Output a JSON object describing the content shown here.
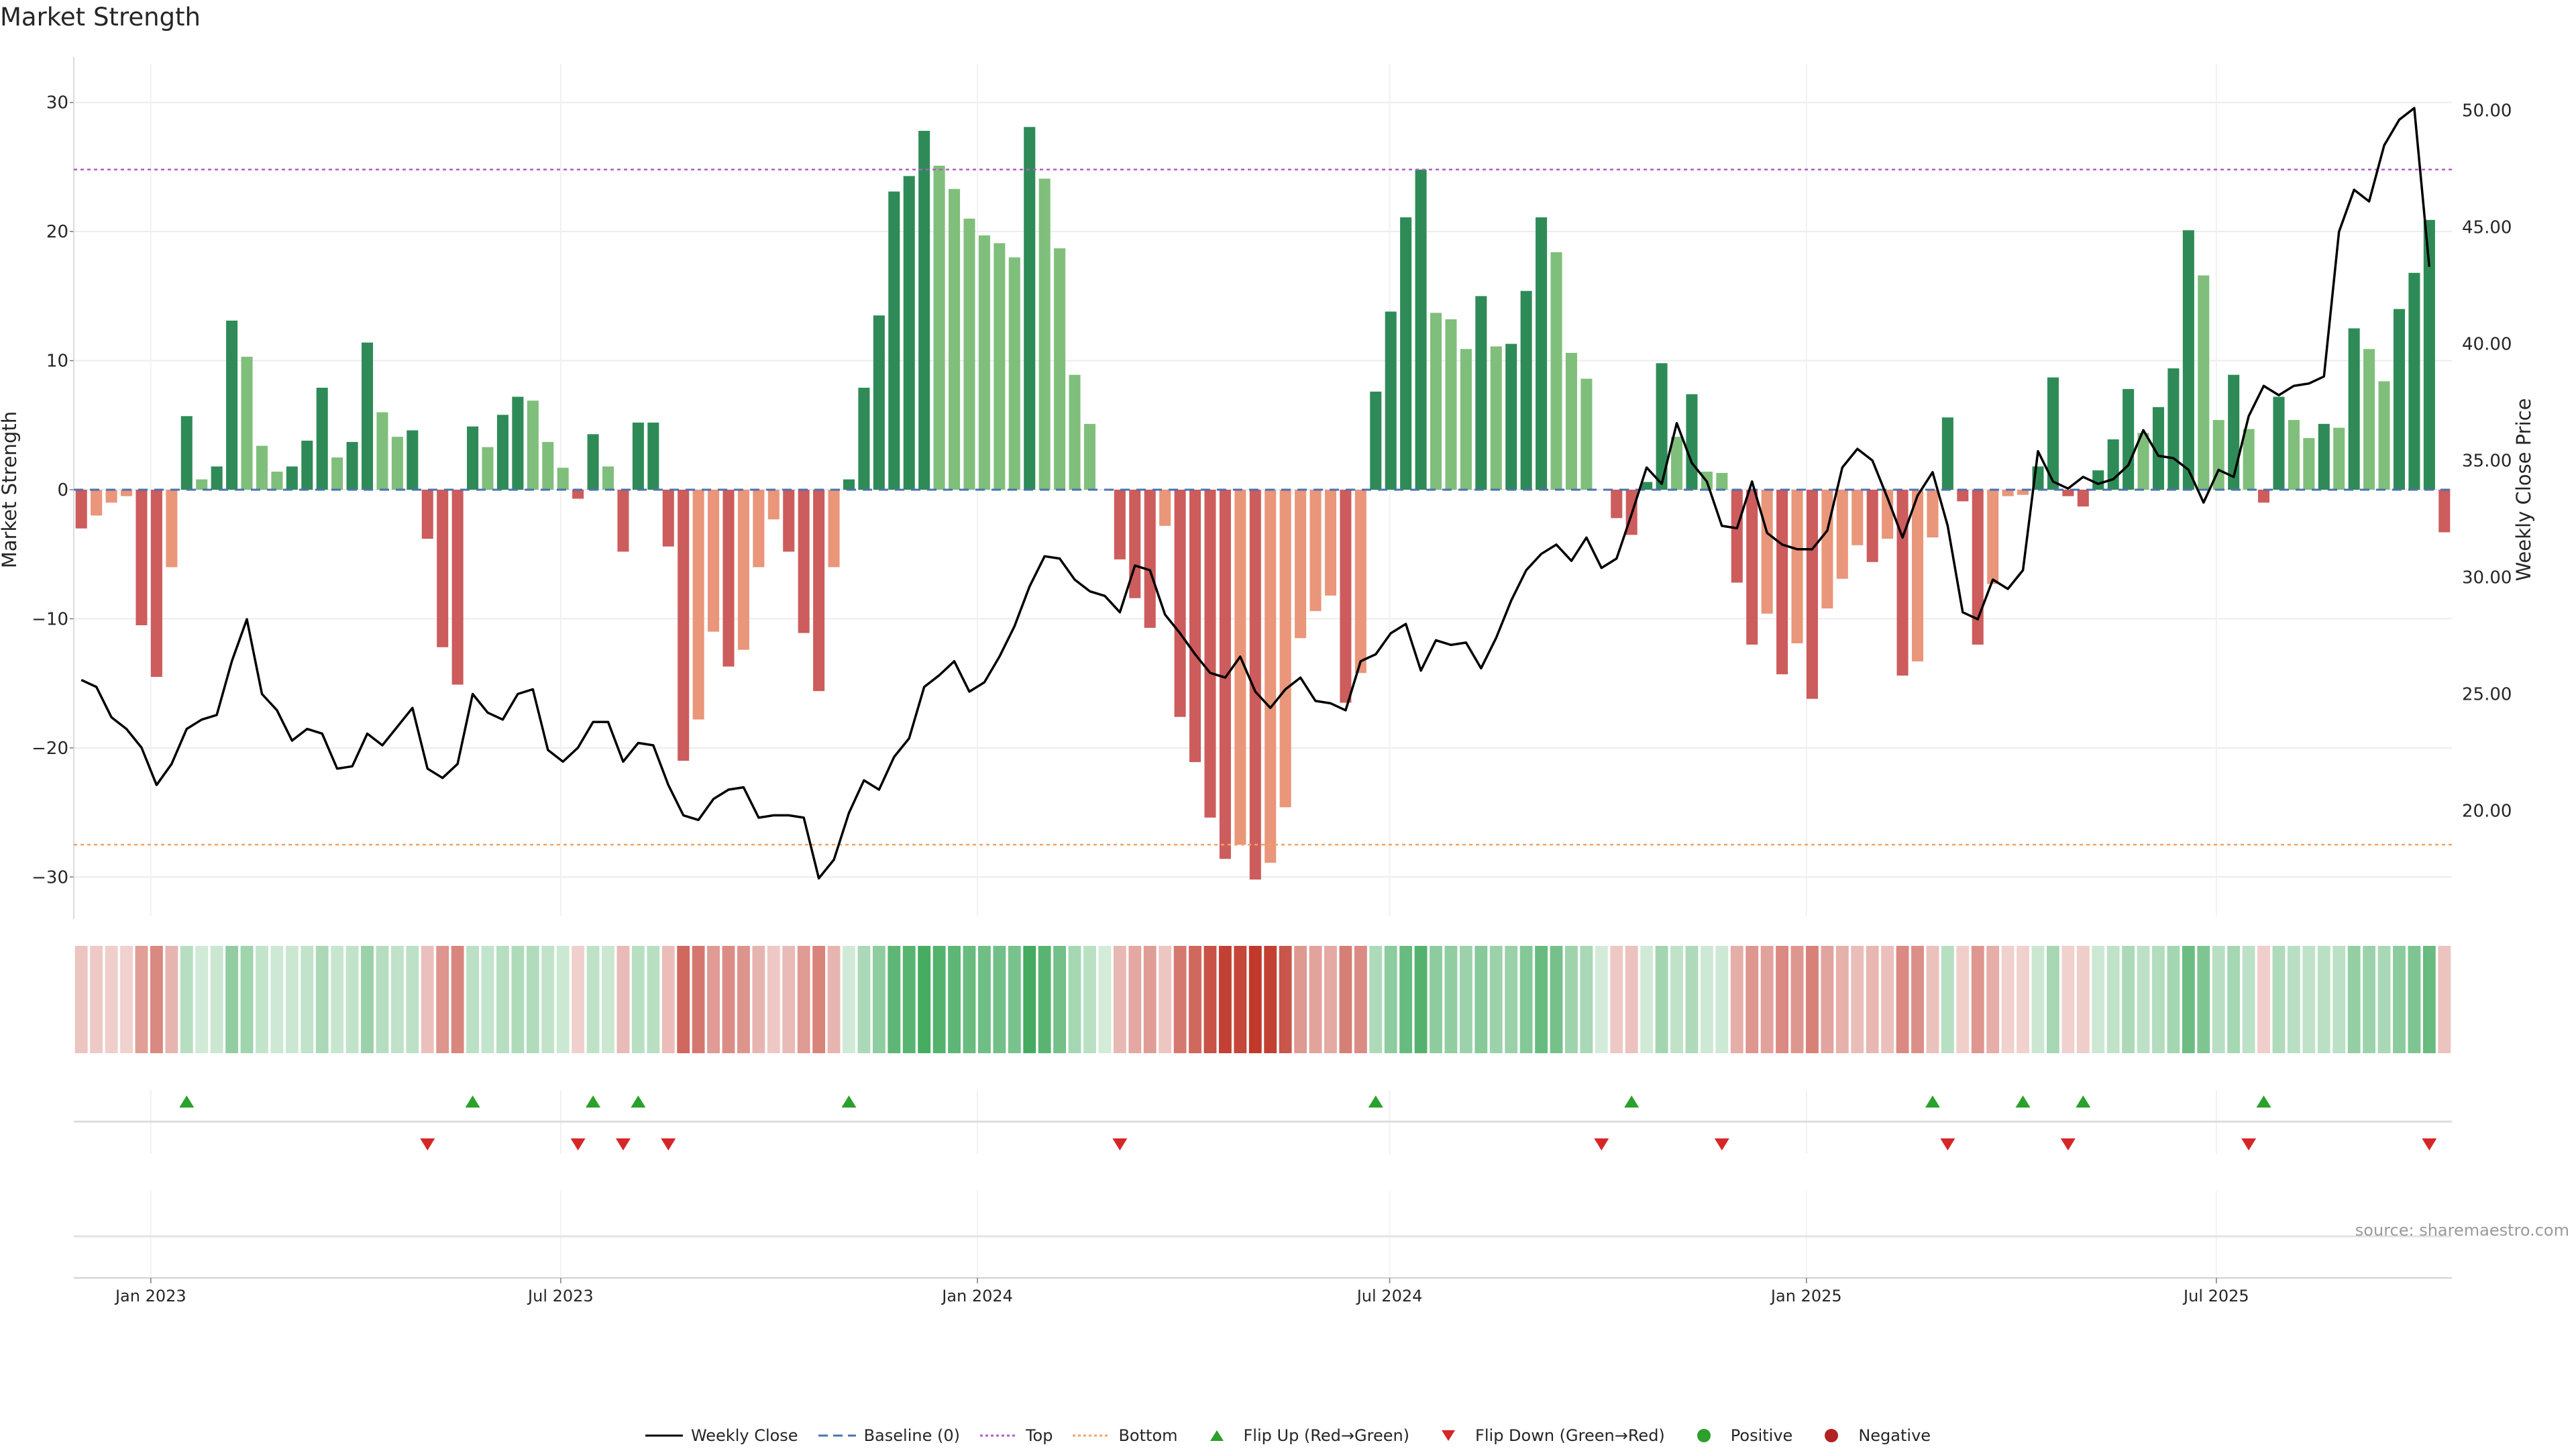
{
  "chart_data": {
    "title": "Market Strength",
    "type": "bar",
    "ylabel": "Market Strength",
    "y2label": "Weekly Close Price",
    "ylim": [
      -33,
      33
    ],
    "y2lim": [
      15.5,
      52
    ],
    "yticks": [
      30,
      20,
      10,
      0,
      -10,
      -20,
      -30
    ],
    "ytick_labels": [
      "30",
      "20",
      "10",
      "0",
      "−10",
      "−20",
      "−30"
    ],
    "y2ticks": [
      50,
      45,
      40,
      35,
      30,
      25,
      20
    ],
    "y2tick_labels": [
      "50.00",
      "45.00",
      "40.00",
      "35.00",
      "30.00",
      "25.00",
      "20.00"
    ],
    "xlim": [
      "2022-11-28",
      "2025-10-13"
    ],
    "xticks": [
      "2023-01-01",
      "2023-07-01",
      "2024-01-01",
      "2024-07-01",
      "2025-01-01",
      "2025-07-01"
    ],
    "xtick_labels": [
      "Jan 2023",
      "Jul 2023",
      "Jan 2024",
      "Jul 2024",
      "Jan 2025",
      "Jul 2025"
    ],
    "start_date": "2022-11-28",
    "top_line": 24.8,
    "bottom_line": -27.5,
    "strength": [
      -3.0,
      -2.0,
      -1.0,
      -0.5,
      -10.5,
      -14.5,
      -6.0,
      5.7,
      0.8,
      1.8,
      13.1,
      10.3,
      3.4,
      1.4,
      1.8,
      3.8,
      7.9,
      2.5,
      3.7,
      11.4,
      6.0,
      4.1,
      4.6,
      -3.8,
      -12.2,
      -15.1,
      4.9,
      3.3,
      5.8,
      7.2,
      6.9,
      3.7,
      1.7,
      -0.7,
      4.3,
      1.8,
      -4.8,
      5.2,
      5.2,
      -4.4,
      -21.0,
      -17.8,
      -11.0,
      -13.7,
      -12.4,
      -6.0,
      -2.3,
      -4.8,
      -11.1,
      -15.6,
      -6.0,
      0.8,
      7.9,
      13.5,
      23.1,
      24.3,
      27.8,
      25.1,
      23.3,
      21.0,
      19.7,
      19.1,
      18.0,
      28.1,
      24.1,
      18.7,
      8.9,
      5.1,
      0,
      -5.4,
      -8.4,
      -10.7,
      -2.8,
      -17.6,
      -21.1,
      -25.4,
      -28.6,
      -27.5,
      -30.2,
      -28.9,
      -24.6,
      -11.5,
      -9.4,
      -8.2,
      -16.5,
      -14.2,
      7.6,
      13.8,
      21.1,
      24.8,
      13.7,
      13.2,
      10.9,
      15.0,
      11.1,
      11.3,
      15.4,
      21.1,
      18.4,
      10.6,
      8.6,
      0,
      -2.2,
      -3.5,
      0.6,
      9.8,
      4.1,
      7.4,
      1.4,
      1.3,
      -7.2,
      -12.0,
      -9.6,
      -14.3,
      -11.9,
      -16.2,
      -9.2,
      -6.9,
      -4.3,
      -5.6,
      -3.8,
      -14.4,
      -13.3,
      -3.7,
      5.6,
      -0.9,
      -12.0,
      -7.3,
      -0.5,
      -0.4,
      1.8,
      8.7,
      -0.5,
      -1.3,
      1.5,
      3.9,
      7.8,
      4.4,
      6.4,
      9.4,
      20.1,
      16.6,
      5.4,
      8.9,
      4.7,
      -1.0,
      7.2,
      5.4,
      4.0,
      5.1,
      4.8,
      12.5,
      10.9,
      8.4,
      14.0,
      16.8,
      20.9,
      -3.3
    ],
    "close": [
      25.6,
      25.3,
      24.0,
      23.5,
      22.7,
      21.1,
      22.0,
      23.5,
      23.9,
      24.1,
      26.4,
      28.2,
      25.0,
      24.3,
      23.0,
      23.5,
      23.3,
      21.8,
      21.9,
      23.3,
      22.8,
      23.6,
      24.4,
      21.8,
      21.4,
      22.0,
      25.0,
      24.2,
      23.9,
      25.0,
      25.2,
      22.6,
      22.1,
      22.7,
      23.8,
      23.8,
      22.1,
      22.9,
      22.8,
      21.1,
      19.8,
      19.6,
      20.5,
      20.9,
      21.0,
      19.7,
      19.8,
      19.8,
      19.7,
      17.1,
      17.9,
      19.9,
      21.3,
      20.9,
      22.3,
      23.1,
      25.3,
      25.8,
      26.4,
      25.1,
      25.5,
      26.6,
      27.9,
      29.6,
      30.9,
      30.8,
      29.9,
      29.4,
      29.2,
      28.5,
      30.5,
      30.3,
      28.4,
      27.6,
      26.7,
      25.9,
      25.7,
      26.6,
      25.1,
      24.4,
      25.2,
      25.7,
      24.7,
      24.6,
      24.3,
      26.4,
      26.7,
      27.6,
      28.0,
      26.0,
      27.3,
      27.1,
      27.2,
      26.1,
      27.4,
      29.0,
      30.3,
      31.0,
      31.4,
      30.7,
      31.7,
      30.4,
      30.8,
      32.7,
      34.7,
      34.0,
      36.6,
      34.9,
      34.1,
      32.2,
      32.1,
      34.1,
      31.9,
      31.4,
      31.2,
      31.2,
      32.0,
      34.7,
      35.5,
      35.0,
      33.4,
      31.7,
      33.5,
      34.5,
      32.2,
      28.5,
      28.2,
      29.9,
      29.5,
      30.3,
      35.4,
      34.1,
      33.8,
      34.3,
      34.0,
      34.2,
      34.8,
      36.3,
      35.2,
      35.1,
      34.6,
      33.2,
      34.6,
      34.3,
      36.9,
      38.2,
      37.8,
      38.2,
      38.3,
      38.6,
      44.8,
      46.6,
      46.1,
      48.5,
      49.6,
      50.1,
      43.3
    ],
    "flip_up": [
      7,
      26,
      34,
      37,
      51,
      86,
      103,
      123,
      129,
      133,
      145
    ],
    "flip_down": [
      23,
      33,
      36,
      39,
      69,
      101,
      109,
      124,
      132,
      144,
      156
    ],
    "source_text": "source: sharemaestro.com",
    "legend": [
      {
        "name": "Weekly Close",
        "symbol": "line",
        "color": "#000000"
      },
      {
        "name": "Baseline (0)",
        "symbol": "dashed-line",
        "color": "#4c72b0"
      },
      {
        "name": "Top",
        "symbol": "dotted-line",
        "color": "#b15cc7"
      },
      {
        "name": "Bottom",
        "symbol": "dotted-line",
        "color": "#f4a261"
      },
      {
        "name": "Flip Up (Red→Green)",
        "symbol": "triangle-up",
        "color": "#2ca02c"
      },
      {
        "name": "Flip Down (Green→Red)",
        "symbol": "triangle-down",
        "color": "#d62728"
      },
      {
        "name": "Positive",
        "symbol": "circle",
        "color": "#2ca02c"
      },
      {
        "name": "Negative",
        "symbol": "circle",
        "color": "#b22222"
      }
    ]
  },
  "colors": {
    "pos_strong": "#2e8b57",
    "pos_weak": "#7fbf7b",
    "neg_strong": "#cd5c5c",
    "neg_weak": "#e9967a",
    "close_line": "#000000",
    "baseline": "#4c72b0",
    "top": "#b15cc7",
    "bottom": "#f4a261",
    "flip_up": "#2ca02c",
    "flip_down": "#d62728"
  }
}
